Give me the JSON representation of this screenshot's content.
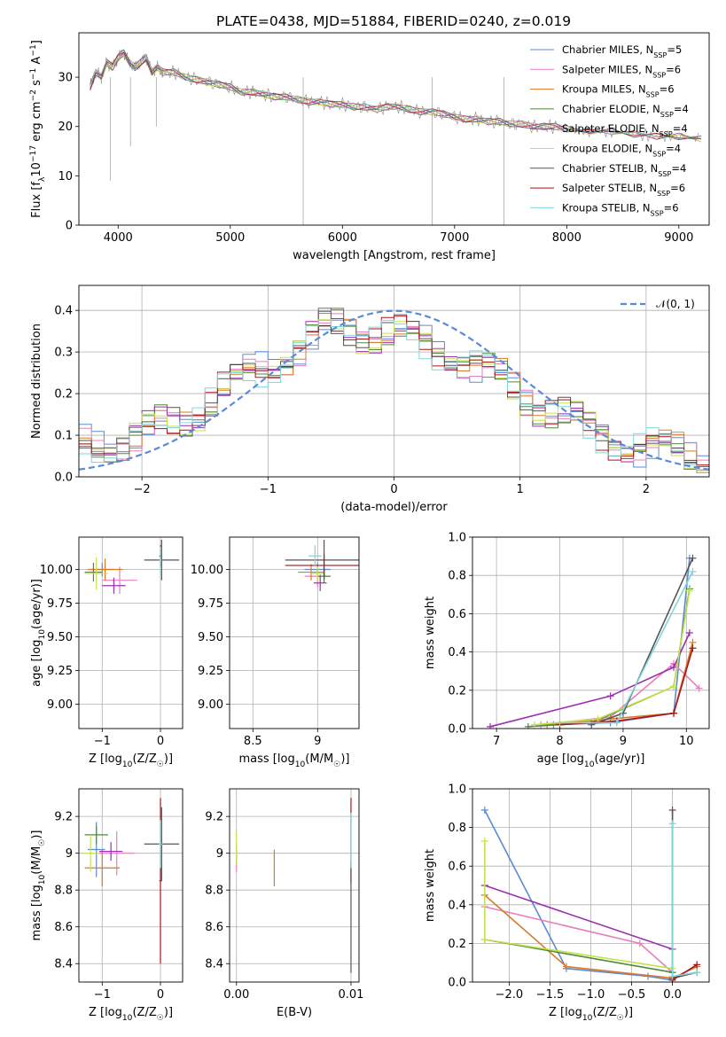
{
  "figure_title": "PLATE=0438, MJD=51884, FIBERID=0240, z=0.019",
  "colors": {
    "Chabrier MILES": "#5b8bd6",
    "Salpeter MILES": "#e57fbf",
    "Kroupa MILES": "#d9792a",
    "Chabrier ELODIE": "#4f8a3c",
    "Salpeter ELODIE": "#9b2fae",
    "Kroupa ELODIE": "#c6e24a",
    "Chabrier STELIB": "#555555",
    "Salpeter STELIB": "#a8151b",
    "Kroupa STELIB": "#7fd6d8",
    "normal_curve": "#5b8bd6",
    "grid": "#b0b0b0"
  },
  "chart_data": [
    {
      "id": "spectrum",
      "type": "line",
      "xlabel": "wavelength [Angstrom, rest frame]",
      "ylabel": "Flux [f_λ 10⁻¹⁷ erg cm⁻² s⁻¹ A⁻¹]",
      "xlim": [
        3650,
        9270
      ],
      "ylim": [
        0,
        39
      ],
      "xticks": [
        4000,
        5000,
        6000,
        7000,
        8000,
        9000
      ],
      "yticks": [
        0,
        10,
        20,
        30
      ],
      "grid": false,
      "legend_position": "top-right",
      "legend": [
        {
          "name": "Chabrier MILES",
          "nssp": "5"
        },
        {
          "name": "Salpeter MILES",
          "nssp": "6"
        },
        {
          "name": "Kroupa MILES",
          "nssp": "6"
        },
        {
          "name": "Chabrier ELODIE",
          "nssp": "4"
        },
        {
          "name": "Salpeter ELODIE",
          "nssp": "4"
        },
        {
          "name": "Kroupa ELODIE",
          "nssp": "4"
        },
        {
          "name": "Chabrier STELIB",
          "nssp": "4"
        },
        {
          "name": "Salpeter STELIB",
          "nssp": "6"
        },
        {
          "name": "Kroupa STELIB",
          "nssp": "6"
        }
      ],
      "observed_spectrum": {
        "x": [
          3750,
          3800,
          3850,
          3900,
          3950,
          4000,
          4050,
          4100,
          4150,
          4200,
          4250,
          4300,
          4350,
          4400,
          4500,
          4600,
          4700,
          4800,
          4900,
          5000,
          5100,
          5200,
          5300,
          5400,
          5500,
          5600,
          5700,
          5800,
          5900,
          6000,
          6100,
          6200,
          6300,
          6400,
          6500,
          6600,
          6700,
          6800,
          6900,
          7000,
          7100,
          7200,
          7300,
          7400,
          7500,
          7600,
          7700,
          7800,
          7900,
          8000,
          8200,
          8400,
          8600,
          8800,
          9000,
          9200
        ],
        "y": [
          28,
          31,
          30,
          33,
          32,
          34,
          35,
          33,
          32,
          33,
          34,
          31,
          32,
          31,
          31,
          30,
          29.5,
          29,
          28.5,
          28,
          27,
          27,
          26.5,
          26,
          26,
          25.5,
          25,
          25,
          24.5,
          24.5,
          24,
          24,
          23.5,
          24,
          24,
          23.5,
          23,
          23,
          22.5,
          22,
          21.5,
          21.5,
          21,
          21,
          20.5,
          20.5,
          20,
          20,
          20,
          19.5,
          19,
          19,
          18.5,
          18,
          18,
          17.5
        ]
      }
    },
    {
      "id": "residual_histogram",
      "type": "line",
      "xlabel": "(data-model)/error",
      "ylabel": "Normed distribution",
      "xlim": [
        -2.5,
        2.5
      ],
      "ylim": [
        0,
        0.46
      ],
      "xticks": [
        -2,
        -1,
        0,
        1,
        2
      ],
      "yticks": [
        0.0,
        0.1,
        0.2,
        0.3,
        0.4
      ],
      "grid": true,
      "legend_position": "top-right",
      "legend": [
        {
          "name": "𝒩(0, 1)"
        }
      ],
      "histogram_profile": {
        "x": [
          -2.5,
          -2.0,
          -1.5,
          -1.0,
          -0.5,
          0.0,
          0.5,
          1.0,
          1.5,
          2.0,
          2.5
        ],
        "y": [
          0.07,
          0.1,
          0.17,
          0.27,
          0.36,
          0.34,
          0.3,
          0.2,
          0.12,
          0.07,
          0.04
        ]
      }
    },
    {
      "id": "age_vs_Z",
      "type": "scatter",
      "xlabel": "Z [log₁₀(Z/Z☉)]",
      "ylabel": "age  [log₁₀(age/yr)]",
      "xlim": [
        -1.4,
        0.38
      ],
      "ylim": [
        8.82,
        10.24
      ],
      "xticks": [
        -1,
        0
      ],
      "yticks": [
        9.0,
        9.25,
        9.5,
        9.75,
        10.0
      ],
      "ytick_labels": [
        "9.00",
        "9.25",
        "9.50",
        "9.75",
        "10.00"
      ],
      "grid": true,
      "series": [
        {
          "color_key": "Chabrier MILES",
          "x": -1.0,
          "y": 10.0,
          "xerr": 0.2,
          "yerr": 0.05
        },
        {
          "color_key": "Salpeter MILES",
          "x": -0.7,
          "y": 9.92,
          "xerr": 0.3,
          "yerr": 0.1
        },
        {
          "color_key": "Kroupa MILES",
          "x": -0.95,
          "y": 10.0,
          "xerr": 0.3,
          "yerr": 0.08
        },
        {
          "color_key": "Chabrier ELODIE",
          "x": -1.15,
          "y": 9.98,
          "xerr": 0.15,
          "yerr": 0.07
        },
        {
          "color_key": "Salpeter ELODIE",
          "x": -0.8,
          "y": 9.88,
          "xerr": 0.2,
          "yerr": 0.06
        },
        {
          "color_key": "Kroupa ELODIE",
          "x": -1.1,
          "y": 9.97,
          "xerr": 0.2,
          "yerr": 0.12
        },
        {
          "color_key": "Chabrier STELIB",
          "x": 0.02,
          "y": 10.07,
          "xerr": 0.3,
          "yerr": 0.15
        },
        {
          "color_key": "Salpeter STELIB",
          "x": 0.0,
          "y": 10.1,
          "xerr": 0.02,
          "yerr": 0.08
        },
        {
          "color_key": "Kroupa STELIB",
          "x": 0.0,
          "y": 10.07,
          "xerr": 0.02,
          "yerr": 0.1
        }
      ]
    },
    {
      "id": "age_vs_mass",
      "type": "scatter",
      "xlabel": "mass [log₁₀(M/M☉)]",
      "ylabel": "",
      "xlim": [
        8.32,
        9.32
      ],
      "ylim": [
        8.82,
        10.24
      ],
      "xticks": [
        8.5,
        9.0
      ],
      "yticks": [
        9.0,
        9.25,
        9.5,
        9.75,
        10.0
      ],
      "ytick_labels": [
        "9.00",
        "9.25",
        "9.50",
        "9.75",
        "10.00"
      ],
      "grid": true,
      "series": [
        {
          "color_key": "Chabrier MILES",
          "x": 9.0,
          "y": 10.0,
          "xerr": 0.1,
          "yerr": 0.05
        },
        {
          "color_key": "Salpeter MILES",
          "x": 9.0,
          "y": 9.95,
          "xerr": 0.1,
          "yerr": 0.08
        },
        {
          "color_key": "Kroupa MILES",
          "x": 8.95,
          "y": 9.98,
          "xerr": 0.1,
          "yerr": 0.06
        },
        {
          "color_key": "Chabrier ELODIE",
          "x": 9.05,
          "y": 9.95,
          "xerr": 0.05,
          "yerr": 0.05
        },
        {
          "color_key": "Salpeter ELODIE",
          "x": 9.02,
          "y": 9.9,
          "xerr": 0.05,
          "yerr": 0.06
        },
        {
          "color_key": "Kroupa ELODIE",
          "x": 9.0,
          "y": 9.97,
          "xerr": 0.05,
          "yerr": 0.05
        },
        {
          "color_key": "Chabrier STELIB",
          "x": 9.05,
          "y": 10.07,
          "xerr": 0.3,
          "yerr": 0.15
        },
        {
          "color_key": "Salpeter STELIB",
          "x": 9.05,
          "y": 10.03,
          "xerr": 0.3,
          "yerr": 0.08
        },
        {
          "color_key": "Kroupa STELIB",
          "x": 8.98,
          "y": 10.1,
          "xerr": 0.05,
          "yerr": 0.08
        }
      ]
    },
    {
      "id": "mass_weight_vs_age",
      "type": "line",
      "xlabel": "age  [log₁₀(age/yr)]",
      "ylabel": "mass weight",
      "xlim": [
        6.62,
        10.36
      ],
      "ylim": [
        0,
        1
      ],
      "xticks": [
        7,
        8,
        9,
        10
      ],
      "yticks": [
        0.0,
        0.2,
        0.4,
        0.6,
        0.8,
        1.0
      ],
      "grid": true,
      "series": [
        {
          "color_key": "Chabrier MILES",
          "x": [
            7.9,
            8.8,
            9.8,
            10.05
          ],
          "y": [
            0.02,
            0.03,
            0.08,
            0.89
          ]
        },
        {
          "color_key": "Salpeter MILES",
          "x": [
            7.7,
            8.8,
            9.8,
            10.2
          ],
          "y": [
            0.02,
            0.06,
            0.34,
            0.21
          ]
        },
        {
          "color_key": "Kroupa MILES",
          "x": [
            7.8,
            8.8,
            9.8,
            10.1
          ],
          "y": [
            0.02,
            0.05,
            0.08,
            0.45
          ]
        },
        {
          "color_key": "Chabrier ELODIE",
          "x": [
            7.5,
            8.5,
            9.8,
            10.05
          ],
          "y": [
            0.01,
            0.03,
            0.22,
            0.73
          ]
        },
        {
          "color_key": "Salpeter ELODIE",
          "x": [
            6.9,
            8.8,
            9.8,
            10.05
          ],
          "y": [
            0.01,
            0.17,
            0.32,
            0.5
          ]
        },
        {
          "color_key": "Kroupa ELODIE",
          "x": [
            7.6,
            8.6,
            9.8,
            10.05
          ],
          "y": [
            0.02,
            0.05,
            0.22,
            0.72
          ]
        },
        {
          "color_key": "Chabrier STELIB",
          "x": [
            8.5,
            9.0,
            10.1
          ],
          "y": [
            0.02,
            0.08,
            0.89
          ]
        },
        {
          "color_key": "Salpeter STELIB",
          "x": [
            8.0,
            8.9,
            9.8,
            10.1
          ],
          "y": [
            0.02,
            0.04,
            0.08,
            0.42
          ]
        },
        {
          "color_key": "Kroupa STELIB",
          "x": [
            8.0,
            8.9,
            10.1
          ],
          "y": [
            0.03,
            0.03,
            0.82
          ]
        }
      ]
    },
    {
      "id": "mass_vs_Z",
      "type": "scatter",
      "xlabel": "Z [log₁₀(Z/Z☉)]",
      "ylabel": "mass [log₁₀(M/M☉)]",
      "xlim": [
        -1.4,
        0.38
      ],
      "ylim": [
        8.3,
        9.35
      ],
      "xticks": [
        -1,
        0
      ],
      "yticks": [
        8.4,
        8.6,
        8.8,
        9.0,
        9.2
      ],
      "grid": true,
      "series": [
        {
          "color_key": "Chabrier MILES",
          "x": -1.1,
          "y": 9.02,
          "xerr": 0.15,
          "yerr": 0.15
        },
        {
          "color_key": "Salpeter MILES",
          "x": -0.75,
          "y": 9.0,
          "xerr": 0.3,
          "yerr": 0.12
        },
        {
          "color_key": "Kroupa MILES",
          "x": -1.0,
          "y": 8.92,
          "xerr": 0.3,
          "yerr": 0.1
        },
        {
          "color_key": "Chabrier ELODIE",
          "x": -1.1,
          "y": 9.1,
          "xerr": 0.2,
          "yerr": 0.05
        },
        {
          "color_key": "Salpeter ELODIE",
          "x": -0.85,
          "y": 9.01,
          "xerr": 0.2,
          "yerr": 0.05
        },
        {
          "color_key": "Kroupa ELODIE",
          "x": -1.2,
          "y": 9.0,
          "xerr": 0.15,
          "yerr": 0.1
        },
        {
          "color_key": "Chabrier STELIB",
          "x": 0.02,
          "y": 9.05,
          "xerr": 0.3,
          "yerr": 0.2
        },
        {
          "color_key": "Salpeter STELIB",
          "x": 0.0,
          "y": 8.85,
          "xerr": 0.02,
          "yerr": 0.45
        },
        {
          "color_key": "Kroupa STELIB",
          "x": 0.0,
          "y": 9.05,
          "xerr": 0.03,
          "yerr": 0.13
        }
      ]
    },
    {
      "id": "mass_vs_EBV",
      "type": "scatter",
      "xlabel": "E(B-V)",
      "ylabel": "",
      "xlim": [
        -0.0006,
        0.0107
      ],
      "ylim": [
        8.3,
        9.35
      ],
      "xticks": [
        0.0,
        0.01
      ],
      "xtick_labels": [
        "0.00",
        "0.01"
      ],
      "yticks": [
        8.4,
        8.6,
        8.8,
        9.0,
        9.2
      ],
      "grid": true,
      "series": [
        {
          "color_key": "Salpeter MILES",
          "x": 0.0,
          "y": 8.97,
          "xerr": 0.0,
          "yerr": 0.07
        },
        {
          "color_key": "Kroupa ELODIE",
          "x": 0.0,
          "y": 9.03,
          "xerr": 0.0,
          "yerr": 0.09
        },
        {
          "color_key": "Kroupa MILES",
          "x": 0.0033,
          "y": 8.92,
          "xerr": 0.0,
          "yerr": 0.1
        },
        {
          "color_key": "Salpeter STELIB",
          "x": 0.01,
          "y": 9.07,
          "xerr": 0.0,
          "yerr": 0.23
        },
        {
          "color_key": "Chabrier STELIB",
          "x": 0.01,
          "y": 8.65,
          "xerr": 0.0,
          "yerr": 0.3
        },
        {
          "color_key": "Kroupa STELIB",
          "x": 0.01,
          "y": 9.07,
          "xerr": 0.0,
          "yerr": 0.15
        }
      ]
    },
    {
      "id": "mass_weight_vs_Z",
      "type": "line",
      "xlabel": "Z [log₁₀(Z/Z☉)]",
      "ylabel": "mass weight",
      "xlim": [
        -2.45,
        0.45
      ],
      "ylim": [
        0,
        1
      ],
      "xticks": [
        -2.0,
        -1.5,
        -1.0,
        -0.5,
        0.0
      ],
      "xtick_labels": [
        "−2.0",
        "−1.5",
        "−1.0",
        "−0.5",
        "0.0"
      ],
      "yticks": [
        0.0,
        0.2,
        0.4,
        0.6,
        0.8,
        1.0
      ],
      "grid": true,
      "series": [
        {
          "color_key": "Chabrier MILES",
          "x": [
            -2.3,
            -1.3,
            -0.3,
            0.0
          ],
          "y": [
            0.89,
            0.07,
            0.03,
            0.01
          ]
        },
        {
          "color_key": "Salpeter MILES",
          "x": [
            -2.3,
            -0.4,
            0.0
          ],
          "y": [
            0.39,
            0.2,
            0.05
          ]
        },
        {
          "color_key": "Kroupa MILES",
          "x": [
            -2.3,
            -1.3,
            0.0,
            0.3
          ],
          "y": [
            0.45,
            0.08,
            0.02,
            0.08
          ]
        },
        {
          "color_key": "Chabrier ELODIE",
          "x": [
            -2.3,
            0.0
          ],
          "y": [
            0.22,
            0.05
          ]
        },
        {
          "color_key": "Salpeter ELODIE",
          "x": [
            -2.3,
            0.0
          ],
          "y": [
            0.5,
            0.17
          ]
        },
        {
          "color_key": "Kroupa ELODIE",
          "x": [
            -2.3,
            -2.3,
            0.0
          ],
          "y": [
            0.73,
            0.22,
            0.07
          ]
        },
        {
          "color_key": "Chabrier STELIB",
          "x": [
            0.0,
            0.0,
            0.3
          ],
          "y": [
            0.89,
            0.02,
            0.05
          ]
        },
        {
          "color_key": "Salpeter STELIB",
          "x": [
            0.0,
            0.3
          ],
          "y": [
            0.01,
            0.09
          ]
        },
        {
          "color_key": "Kroupa STELIB",
          "x": [
            0.0,
            0.0,
            0.3
          ],
          "y": [
            0.82,
            0.03,
            0.05
          ]
        }
      ]
    }
  ]
}
